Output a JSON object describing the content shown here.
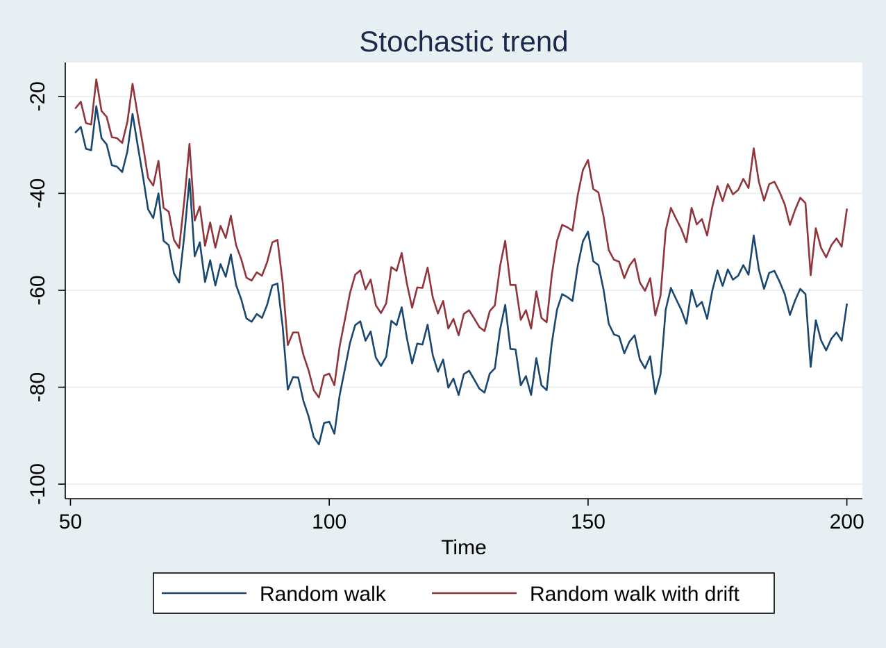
{
  "chart_data": {
    "type": "line",
    "title": "Stochastic trend",
    "xlabel": "Time",
    "ylabel": "",
    "xlim": [
      49,
      203
    ],
    "ylim": [
      -103,
      -13
    ],
    "x_ticks": [
      50,
      100,
      150,
      200
    ],
    "x_tick_labels": [
      "50",
      "100",
      "150",
      "200"
    ],
    "y_ticks": [
      -20,
      -40,
      -60,
      -80,
      -100
    ],
    "y_tick_labels": [
      "-20",
      "-40",
      "-60",
      "-80",
      "-100"
    ],
    "grid": true,
    "legend_position": "bottom",
    "colors": {
      "page_background": "#e8eff2",
      "plot_background": "#ffffff",
      "grid": "#e8eff2",
      "axis": "#000000",
      "title": "#1b2a4a",
      "random_walk": "#1a476f",
      "random_walk_with_drift": "#90353b"
    },
    "x": [
      51,
      52,
      53,
      54,
      55,
      56,
      57,
      58,
      59,
      60,
      61,
      62,
      63,
      64,
      65,
      66,
      67,
      68,
      69,
      70,
      71,
      72,
      73,
      74,
      75,
      76,
      77,
      78,
      79,
      80,
      81,
      82,
      83,
      84,
      85,
      86,
      87,
      88,
      89,
      90,
      91,
      92,
      93,
      94,
      95,
      96,
      97,
      98,
      99,
      100,
      101,
      102,
      103,
      104,
      105,
      106,
      107,
      108,
      109,
      110,
      111,
      112,
      113,
      114,
      115,
      116,
      117,
      118,
      119,
      120,
      121,
      122,
      123,
      124,
      125,
      126,
      127,
      128,
      129,
      130,
      131,
      132,
      133,
      134,
      135,
      136,
      137,
      138,
      139,
      140,
      141,
      142,
      143,
      144,
      145,
      146,
      147,
      148,
      149,
      150,
      151,
      152,
      153,
      154,
      155,
      156,
      157,
      158,
      159,
      160,
      161,
      162,
      163,
      164,
      165,
      166,
      167,
      168,
      169,
      170,
      171,
      172,
      173,
      174,
      175,
      176,
      177,
      178,
      179,
      180,
      181,
      182,
      183,
      184,
      185,
      186,
      187,
      188,
      189,
      190,
      191,
      192,
      193,
      194,
      195,
      196,
      197,
      198,
      199,
      200
    ],
    "series": [
      {
        "name": "Random walk",
        "values": [
          -27.4,
          -26.3,
          -30.8,
          -31.1,
          -22,
          -28.6,
          -29.9,
          -34.2,
          -34.5,
          -35.6,
          -31.3,
          -23.6,
          -30.2,
          -36.4,
          -43.3,
          -45.1,
          -40,
          -49.8,
          -50.7,
          -56.5,
          -58.4,
          -48.6,
          -37,
          -53,
          -50.1,
          -58.3,
          -53.8,
          -59,
          -54.6,
          -57.2,
          -52.6,
          -58.9,
          -61.9,
          -65.8,
          -66.5,
          -64.9,
          -65.7,
          -63,
          -59,
          -58.6,
          -67.5,
          -80.5,
          -77.9,
          -78,
          -82.8,
          -86,
          -90.3,
          -91.8,
          -87.4,
          -87.1,
          -89.6,
          -81.7,
          -76.4,
          -70.9,
          -67.2,
          -66.4,
          -70.4,
          -68.5,
          -73.9,
          -75.6,
          -73.7,
          -66.3,
          -67.2,
          -63.5,
          -69.9,
          -75.1,
          -71,
          -71.2,
          -67.1,
          -73.4,
          -76.8,
          -74.3,
          -80.1,
          -78.2,
          -81.6,
          -77.3,
          -76.6,
          -78.4,
          -80.3,
          -81.1,
          -77.2,
          -76.1,
          -68.1,
          -63,
          -72.1,
          -72.2,
          -79.6,
          -77.7,
          -81.6,
          -74,
          -79.6,
          -80.6,
          -70.9,
          -64,
          -60.8,
          -61.4,
          -62.2,
          -55,
          -49.9,
          -47.9,
          -54,
          -54.8,
          -59.9,
          -66.9,
          -69.1,
          -69.5,
          -73,
          -70.6,
          -69.3,
          -74.3,
          -76.1,
          -73.6,
          -81.4,
          -77.3,
          -64,
          -59.5,
          -61.8,
          -64,
          -66.9,
          -59.9,
          -63.4,
          -62.4,
          -65.9,
          -60.1,
          -55.9,
          -59.1,
          -55.7,
          -57.8,
          -57,
          -54.8,
          -56.8,
          -48.7,
          -55.7,
          -59.7,
          -56.4,
          -56,
          -58.2,
          -60.8,
          -65.1,
          -62.1,
          -59.7,
          -60.8,
          -75.8,
          -66.2,
          -70.3,
          -72.4,
          -70,
          -68.7,
          -70.4,
          -62.9
        ]
      },
      {
        "name": "Random walk with drift",
        "values": [
          -22.4,
          -21.1,
          -25.5,
          -25.8,
          -16.5,
          -23,
          -24.2,
          -28.4,
          -28.6,
          -29.6,
          -25.2,
          -17.4,
          -23.9,
          -30,
          -36.8,
          -38.4,
          -33.3,
          -43,
          -43.8,
          -49.6,
          -51.3,
          -41.4,
          -29.8,
          -45.6,
          -42.7,
          -50.8,
          -46,
          -51.2,
          -46.7,
          -49.2,
          -44.6,
          -50.7,
          -53.6,
          -57.4,
          -58,
          -56.3,
          -57,
          -54.2,
          -50.1,
          -49.6,
          -58.4,
          -71.3,
          -68.7,
          -68.7,
          -73.3,
          -76.5,
          -80.6,
          -82.1,
          -77.6,
          -77.2,
          -79.6,
          -71.6,
          -66.2,
          -60.6,
          -56.8,
          -55.9,
          -59.8,
          -57.8,
          -63.1,
          -64.7,
          -62.7,
          -55.2,
          -56,
          -52.3,
          -58.6,
          -63.6,
          -59.4,
          -59.5,
          -55.3,
          -61.5,
          -64.8,
          -62.2,
          -67.9,
          -65.9,
          -69.3,
          -64.9,
          -64.1,
          -65.8,
          -67.6,
          -68.4,
          -64.3,
          -63.1,
          -55,
          -49.8,
          -58.9,
          -58.9,
          -66.1,
          -64.1,
          -67.9,
          -60.2,
          -65.7,
          -66.6,
          -56.8,
          -49.8,
          -46.5,
          -47,
          -47.7,
          -40.4,
          -35.2,
          -33.1,
          -39.1,
          -39.8,
          -44.8,
          -51.7,
          -53.7,
          -54.1,
          -57.5,
          -54.9,
          -53.5,
          -58.4,
          -60.1,
          -57.5,
          -65.2,
          -61.1,
          -47.7,
          -43,
          -45.2,
          -47.3,
          -50.1,
          -43,
          -46.4,
          -45.3,
          -48.7,
          -42.8,
          -38.5,
          -41.6,
          -38.1,
          -40.2,
          -39.3,
          -37,
          -38.9,
          -30.7,
          -37.6,
          -41.5,
          -38.1,
          -37.6,
          -39.7,
          -42.3,
          -46.5,
          -43.4,
          -40.9,
          -42,
          -56.9,
          -47.2,
          -51.2,
          -53.2,
          -50.7,
          -49.3,
          -51,
          -43.3
        ]
      }
    ],
    "legend": [
      "Random walk",
      "Random walk with drift"
    ]
  }
}
